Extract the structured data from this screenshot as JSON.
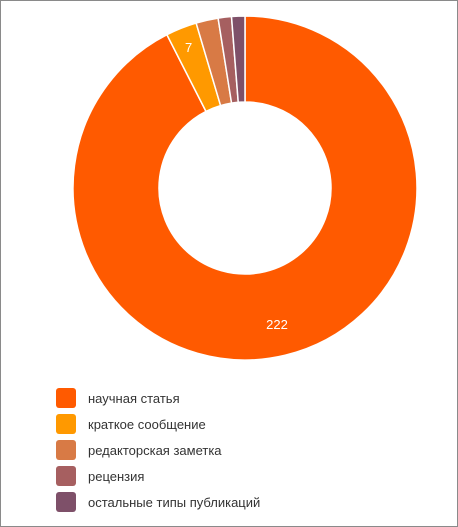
{
  "chart_data": {
    "type": "donut",
    "series": [
      {
        "name": "научная статья",
        "value": 222,
        "color": "#FF5A00",
        "label": "222"
      },
      {
        "name": "краткое сообщение",
        "value": 7,
        "color": "#FF9900",
        "label": "7"
      },
      {
        "name": "редакторская заметка",
        "value": 5,
        "color": "#D87A45",
        "label": ""
      },
      {
        "name": "рецензия",
        "value": 3,
        "color": "#A65F60",
        "label": ""
      },
      {
        "name": "остальные типы публикаций",
        "value": 3,
        "color": "#7E5069",
        "label": ""
      }
    ],
    "legend_position": "bottom-left",
    "start_angle": "top",
    "direction": "clockwise"
  }
}
